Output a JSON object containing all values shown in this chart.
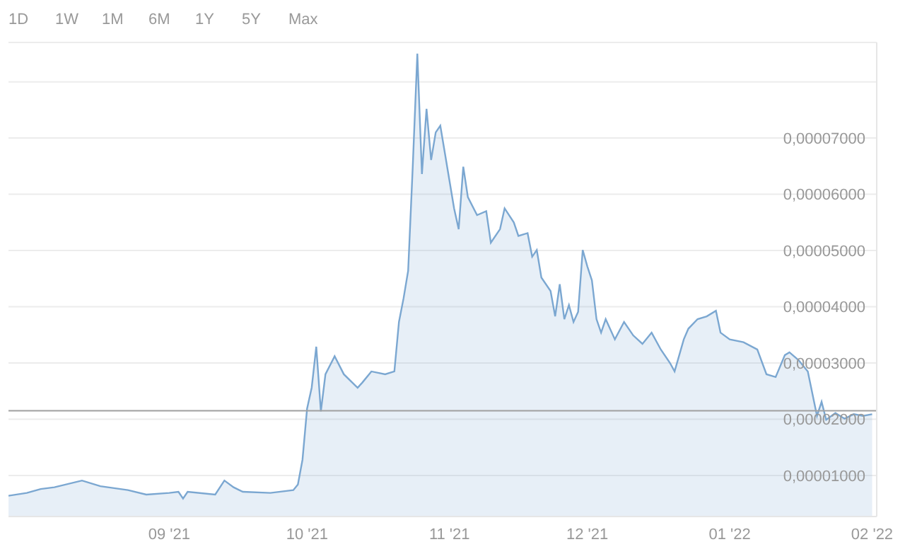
{
  "chart_data": {
    "type": "area",
    "annotations": [
      "1D",
      "1W",
      "1M",
      "6M",
      "1Y",
      "5Y",
      "Max"
    ],
    "x": [
      "2021-07-28",
      "2021-08-01",
      "2021-08-04",
      "2021-08-07",
      "2021-08-13",
      "2021-08-17",
      "2021-08-23",
      "2021-08-27",
      "2021-09-01",
      "2021-09-03",
      "2021-09-04",
      "2021-09-05",
      "2021-09-11",
      "2021-09-13",
      "2021-09-15",
      "2021-09-17",
      "2021-09-23",
      "2021-09-28",
      "2021-09-29",
      "2021-09-30",
      "2021-10-01",
      "2021-10-02",
      "2021-10-03",
      "2021-10-04",
      "2021-10-05",
      "2021-10-07",
      "2021-10-09",
      "2021-10-12",
      "2021-10-13",
      "2021-10-15",
      "2021-10-18",
      "2021-10-20",
      "2021-10-21",
      "2021-10-22",
      "2021-10-23",
      "2021-10-24",
      "2021-10-25",
      "2021-10-26",
      "2021-10-27",
      "2021-10-28",
      "2021-10-29",
      "2021-10-30",
      "2021-10-31",
      "2021-11-01",
      "2021-11-02",
      "2021-11-03",
      "2021-11-04",
      "2021-11-05",
      "2021-11-07",
      "2021-11-09",
      "2021-11-10",
      "2021-11-12",
      "2021-11-13",
      "2021-11-15",
      "2021-11-16",
      "2021-11-18",
      "2021-11-19",
      "2021-11-20",
      "2021-11-21",
      "2021-11-23",
      "2021-11-24",
      "2021-11-25",
      "2021-11-26",
      "2021-11-27",
      "2021-11-28",
      "2021-11-29",
      "2021-11-30",
      "2021-12-01",
      "2021-12-02",
      "2021-12-03",
      "2021-12-04",
      "2021-12-05",
      "2021-12-07",
      "2021-12-09",
      "2021-12-11",
      "2021-12-13",
      "2021-12-15",
      "2021-12-17",
      "2021-12-19",
      "2021-12-20",
      "2021-12-22",
      "2021-12-23",
      "2021-12-25",
      "2021-12-27",
      "2021-12-29",
      "2021-12-30",
      "2022-01-01",
      "2022-01-04",
      "2022-01-07",
      "2022-01-09",
      "2022-01-11",
      "2022-01-13",
      "2022-01-14",
      "2022-01-16",
      "2022-01-18",
      "2022-01-20",
      "2022-01-21",
      "2022-01-22",
      "2022-01-24",
      "2022-01-26",
      "2022-01-28",
      "2022-01-30",
      "2022-02-01"
    ],
    "series": [
      {
        "color": "#7ba7d1",
        "values": [
          6.4e-06,
          6.9e-06,
          7.6e-06,
          7.9e-06,
          9.1e-06,
          8.1e-06,
          7.4e-06,
          6.6e-06,
          6.9e-06,
          7.1e-06,
          5.9e-06,
          7.1e-06,
          6.6e-06,
          9.1e-06,
          7.9e-06,
          7.1e-06,
          6.9e-06,
          7.4e-06,
          8.4e-06,
          1.28e-05,
          2.19e-05,
          2.56e-05,
          3.29e-05,
          2.14e-05,
          2.8e-05,
          3.12e-05,
          2.8e-05,
          2.56e-05,
          2.65e-05,
          2.85e-05,
          2.8e-05,
          2.85e-05,
          3.73e-05,
          4.15e-05,
          4.64e-05,
          6.49e-05,
          8.5e-05,
          6.36e-05,
          7.52e-05,
          6.61e-05,
          7.1e-05,
          7.22e-05,
          6.73e-05,
          6.24e-05,
          5.75e-05,
          5.38e-05,
          6.49e-05,
          5.95e-05,
          5.63e-05,
          5.7e-05,
          5.14e-05,
          5.38e-05,
          5.75e-05,
          5.5e-05,
          5.26e-05,
          5.31e-05,
          4.89e-05,
          5.01e-05,
          4.52e-05,
          4.28e-05,
          3.83e-05,
          4.4e-05,
          3.78e-05,
          4.03e-05,
          3.73e-05,
          3.91e-05,
          5.01e-05,
          4.72e-05,
          4.47e-05,
          3.78e-05,
          3.54e-05,
          3.78e-05,
          3.42e-05,
          3.73e-05,
          3.49e-05,
          3.34e-05,
          3.54e-05,
          3.24e-05,
          3e-05,
          2.85e-05,
          3.42e-05,
          3.61e-05,
          3.78e-05,
          3.83e-05,
          3.93e-05,
          3.54e-05,
          3.42e-05,
          3.37e-05,
          3.24e-05,
          2.8e-05,
          2.75e-05,
          3.14e-05,
          3.19e-05,
          3.05e-05,
          2.85e-05,
          2.06e-05,
          2.31e-05,
          1.99e-05,
          2.11e-05,
          2.01e-05,
          2.09e-05,
          2.06e-05,
          2.09e-05
        ]
      }
    ],
    "xlim": [
      "2021-07-28",
      "2022-02-02"
    ],
    "xticks": [
      {
        "value": "2021-09-01",
        "label": "09 '21"
      },
      {
        "value": "2021-10-01",
        "label": "10 '21"
      },
      {
        "value": "2021-11-01",
        "label": "11 '21"
      },
      {
        "value": "2021-12-01",
        "label": "12 '21"
      },
      {
        "value": "2022-01-01",
        "label": "01 '22"
      },
      {
        "value": "2022-02-01",
        "label": "02 '22"
      }
    ],
    "ylim": [
      2.7e-06,
      8.7e-05
    ],
    "yticks": [
      {
        "value": 1e-05,
        "label": "0,00001000"
      },
      {
        "value": 2e-05,
        "label": "0,00002000"
      },
      {
        "value": 3e-05,
        "label": "0,00003000"
      },
      {
        "value": 4e-05,
        "label": "0,00004000"
      },
      {
        "value": 5e-05,
        "label": "0,00005000"
      },
      {
        "value": 6e-05,
        "label": "0,00006000"
      },
      {
        "value": 7e-05,
        "label": "0,00007000"
      },
      {
        "value": 8e-05,
        "label": null
      }
    ],
    "grid": "y",
    "ref_lines": [
      {
        "axis": "y",
        "value": 2.15e-05,
        "color": "#a0a0a0"
      }
    ]
  }
}
